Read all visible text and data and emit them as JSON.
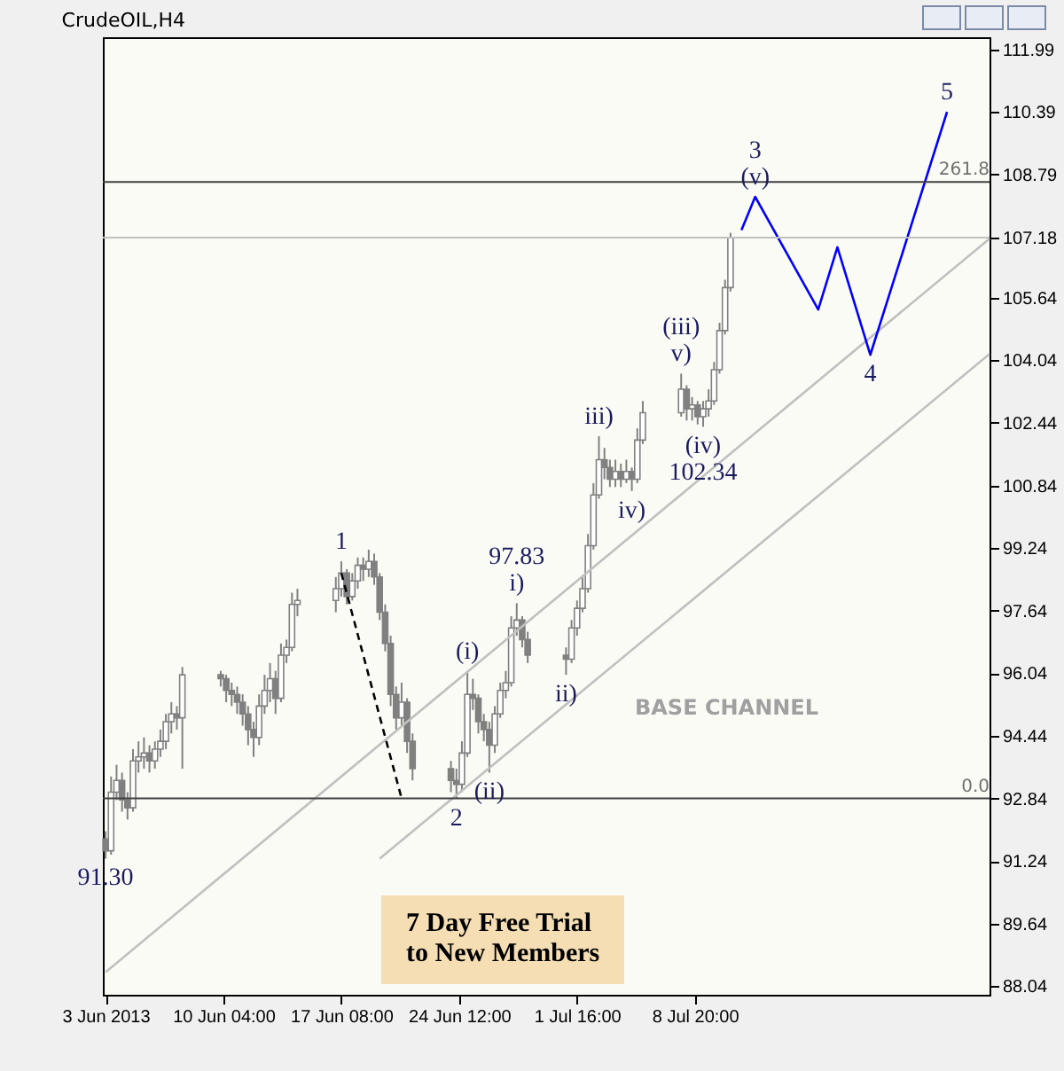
{
  "chart_data": {
    "type": "candlestick",
    "title": "CrudeOIL,H4",
    "xlim": [
      "2013-06-02T20:00",
      "2013-07-26T18:00"
    ],
    "xticks": [
      {
        "value": "2013-06-03T00:00",
        "label": "3 Jun 2013"
      },
      {
        "value": "2013-06-10T04:00",
        "label": "10 Jun 04:00"
      },
      {
        "value": "2013-06-17T08:00",
        "label": "17 Jun 08:00"
      },
      {
        "value": "2013-06-24T12:00",
        "label": "24 Jun 12:00"
      },
      {
        "value": "2013-07-01T16:00",
        "label": "1 Jul 16:00"
      },
      {
        "value": "2013-07-08T20:00",
        "label": "8 Jul 20:00"
      }
    ],
    "ylim": [
      87.82,
      112.3
    ],
    "yticks": [
      111.99,
      110.39,
      108.79,
      107.18,
      105.64,
      104.04,
      102.44,
      100.84,
      99.24,
      97.64,
      96.04,
      94.44,
      92.84,
      91.24,
      89.64,
      88.04
    ],
    "grid": false,
    "series": [
      {
        "color": "#808080",
        "x": [
          "2013-06-03T00:00",
          "2013-06-03T08:00",
          "2013-06-03T16:00",
          "2013-06-04T00:00",
          "2013-06-04T08:00",
          "2013-06-04T16:00",
          "2013-06-05T00:00",
          "2013-06-05T08:00",
          "2013-06-05T16:00",
          "2013-06-06T00:00",
          "2013-06-06T08:00",
          "2013-06-06T16:00",
          "2013-06-07T00:00",
          "2013-06-07T08:00",
          "2013-06-07T16:00",
          "2013-06-10T00:00",
          "2013-06-10T08:00",
          "2013-06-10T16:00",
          "2013-06-11T00:00",
          "2013-06-11T08:00",
          "2013-06-11T16:00",
          "2013-06-12T00:00",
          "2013-06-12T08:00",
          "2013-06-12T16:00",
          "2013-06-13T00:00",
          "2013-06-13T08:00",
          "2013-06-13T16:00",
          "2013-06-14T00:00",
          "2013-06-14T08:00",
          "2013-06-14T16:00",
          "2013-06-17T00:00",
          "2013-06-17T08:00",
          "2013-06-17T16:00",
          "2013-06-18T00:00",
          "2013-06-18T08:00",
          "2013-06-18T16:00",
          "2013-06-19T00:00",
          "2013-06-19T08:00",
          "2013-06-19T16:00",
          "2013-06-20T00:00",
          "2013-06-20T08:00",
          "2013-06-20T16:00",
          "2013-06-21T00:00",
          "2013-06-21T08:00",
          "2013-06-21T16:00",
          "2013-06-24T00:00",
          "2013-06-24T08:00",
          "2013-06-24T16:00",
          "2013-06-25T00:00",
          "2013-06-25T08:00",
          "2013-06-25T16:00",
          "2013-06-26T00:00",
          "2013-06-26T08:00",
          "2013-06-26T16:00",
          "2013-06-27T00:00",
          "2013-06-27T08:00",
          "2013-06-27T16:00",
          "2013-06-28T00:00",
          "2013-06-28T08:00",
          "2013-06-28T16:00",
          "2013-07-01T00:00",
          "2013-07-01T08:00",
          "2013-07-01T16:00",
          "2013-07-02T00:00",
          "2013-07-02T08:00",
          "2013-07-02T16:00",
          "2013-07-03T00:00",
          "2013-07-03T08:00",
          "2013-07-03T16:00",
          "2013-07-04T00:00",
          "2013-07-04T08:00",
          "2013-07-04T16:00",
          "2013-07-05T00:00",
          "2013-07-05T08:00",
          "2013-07-05T16:00",
          "2013-07-08T00:00",
          "2013-07-08T08:00",
          "2013-07-08T16:00",
          "2013-07-09T00:00",
          "2013-07-09T08:00",
          "2013-07-09T16:00",
          "2013-07-10T00:00",
          "2013-07-10T08:00",
          "2013-07-10T16:00",
          "2013-07-11T00:00"
        ],
        "ohlc": [
          [
            91.8,
            92.0,
            91.3,
            91.5
          ],
          [
            91.5,
            93.4,
            91.4,
            93.0
          ],
          [
            93.0,
            93.7,
            92.8,
            93.3
          ],
          [
            93.3,
            93.5,
            92.5,
            92.8
          ],
          [
            92.8,
            93.0,
            92.3,
            92.6
          ],
          [
            92.6,
            94.1,
            92.5,
            93.8
          ],
          [
            93.8,
            94.3,
            93.5,
            93.9
          ],
          [
            93.9,
            94.4,
            93.6,
            94.0
          ],
          [
            94.0,
            94.2,
            93.5,
            93.8
          ],
          [
            93.8,
            94.3,
            93.6,
            94.1
          ],
          [
            94.1,
            94.6,
            93.9,
            94.3
          ],
          [
            94.3,
            95.0,
            94.1,
            94.8
          ],
          [
            94.8,
            95.3,
            94.5,
            95.0
          ],
          [
            95.0,
            95.2,
            94.6,
            94.9
          ],
          [
            94.9,
            96.2,
            93.6,
            96.0
          ],
          [
            96.0,
            96.1,
            95.7,
            95.9
          ],
          [
            95.9,
            96.0,
            95.3,
            95.6
          ],
          [
            95.6,
            95.8,
            95.2,
            95.5
          ],
          [
            95.5,
            95.7,
            95.0,
            95.3
          ],
          [
            95.3,
            95.5,
            94.7,
            95.0
          ],
          [
            95.0,
            95.2,
            94.2,
            94.6
          ],
          [
            94.6,
            94.8,
            93.9,
            94.4
          ],
          [
            94.4,
            95.5,
            94.2,
            95.2
          ],
          [
            95.2,
            96.0,
            95.0,
            95.6
          ],
          [
            95.6,
            96.3,
            95.3,
            95.9
          ],
          [
            95.9,
            96.1,
            95.0,
            95.4
          ],
          [
            95.4,
            96.8,
            95.3,
            96.5
          ],
          [
            96.5,
            96.9,
            96.3,
            96.7
          ],
          [
            96.7,
            98.1,
            96.6,
            97.8
          ],
          [
            97.8,
            98.2,
            97.5,
            97.9
          ],
          [
            97.9,
            98.5,
            97.6,
            98.2
          ],
          [
            98.2,
            98.9,
            98.0,
            98.6
          ],
          [
            98.6,
            98.7,
            97.8,
            98.0
          ],
          [
            98.0,
            98.6,
            97.9,
            98.4
          ],
          [
            98.4,
            99.0,
            98.2,
            98.8
          ],
          [
            98.8,
            99.0,
            98.4,
            98.7
          ],
          [
            98.7,
            99.2,
            98.5,
            98.9
          ],
          [
            98.9,
            99.1,
            98.3,
            98.5
          ],
          [
            98.5,
            98.6,
            97.4,
            97.6
          ],
          [
            97.6,
            97.8,
            96.6,
            96.8
          ],
          [
            96.8,
            97.0,
            95.2,
            95.5
          ],
          [
            95.5,
            95.7,
            94.6,
            94.9
          ],
          [
            94.9,
            95.8,
            94.7,
            95.3
          ],
          [
            95.3,
            95.4,
            94.0,
            94.3
          ],
          [
            94.3,
            94.5,
            93.3,
            93.6
          ],
          [
            93.6,
            93.8,
            93.0,
            93.3
          ],
          [
            93.3,
            93.6,
            92.84,
            93.2
          ],
          [
            93.2,
            94.3,
            93.0,
            94.0
          ],
          [
            94.0,
            96.1,
            93.9,
            95.5
          ],
          [
            95.5,
            95.9,
            95.1,
            95.4
          ],
          [
            95.4,
            95.5,
            94.5,
            94.8
          ],
          [
            94.8,
            95.0,
            94.3,
            94.6
          ],
          [
            94.6,
            94.8,
            93.5,
            94.2
          ],
          [
            94.2,
            95.2,
            94.0,
            95.0
          ],
          [
            95.0,
            95.8,
            94.9,
            95.6
          ],
          [
            95.6,
            96.1,
            95.4,
            95.8
          ],
          [
            95.8,
            97.5,
            95.7,
            97.2
          ],
          [
            97.2,
            97.83,
            97.0,
            97.4
          ],
          [
            97.4,
            97.5,
            96.7,
            96.9
          ],
          [
            96.9,
            97.1,
            96.3,
            96.5
          ],
          [
            96.5,
            96.7,
            96.0,
            96.4
          ],
          [
            96.4,
            97.4,
            96.3,
            97.2
          ],
          [
            97.2,
            97.9,
            97.0,
            97.7
          ],
          [
            97.7,
            98.5,
            97.6,
            98.2
          ],
          [
            98.2,
            99.6,
            98.1,
            99.3
          ],
          [
            99.3,
            100.9,
            99.2,
            100.6
          ],
          [
            100.6,
            102.1,
            100.5,
            101.5
          ],
          [
            101.5,
            101.8,
            101.0,
            101.3
          ],
          [
            101.3,
            101.5,
            100.8,
            101.0
          ],
          [
            101.0,
            101.5,
            100.8,
            101.2
          ],
          [
            101.2,
            101.4,
            100.8,
            101.0
          ],
          [
            101.0,
            101.5,
            100.9,
            101.2
          ],
          [
            101.2,
            101.3,
            100.7,
            101.0
          ],
          [
            101.0,
            102.3,
            100.9,
            102.0
          ],
          [
            102.0,
            103.0,
            101.9,
            102.7
          ],
          [
            102.7,
            103.7,
            102.6,
            103.3
          ],
          [
            103.3,
            103.4,
            102.5,
            102.8
          ],
          [
            102.8,
            103.1,
            102.5,
            102.9
          ],
          [
            102.9,
            103.0,
            102.4,
            102.6
          ],
          [
            102.6,
            103.0,
            102.34,
            102.8
          ],
          [
            102.8,
            103.3,
            102.6,
            103.0
          ],
          [
            103.0,
            104.0,
            102.9,
            103.8
          ],
          [
            103.8,
            105.0,
            103.7,
            104.8
          ],
          [
            104.8,
            106.1,
            104.7,
            105.9
          ],
          [
            105.9,
            107.3,
            105.8,
            107.18
          ]
        ]
      },
      {
        "type": "line",
        "color": "#c0c0c0",
        "x": [
          "2013-06-03T00:00",
          "2013-07-26T18:00"
        ],
        "values": [
          88.4,
          107.15
        ]
      },
      {
        "type": "line",
        "color": "#c0c0c0",
        "x": [
          "2013-06-19T16:00",
          "2013-07-26T18:00"
        ],
        "values": [
          91.3,
          104.2
        ]
      },
      {
        "type": "line",
        "color": "#000000",
        "line_style": "dashed",
        "x": [
          "2013-06-17T08:00",
          "2013-06-21T00:00"
        ],
        "values": [
          98.6,
          92.84
        ]
      },
      {
        "type": "line",
        "color": "#0000ff",
        "x": [
          "2013-07-11T16:00",
          "2013-07-12T12:00",
          "2013-07-16T08:00",
          "2013-07-17T12:00",
          "2013-07-19T12:00",
          "2013-07-24T04:00"
        ],
        "values": [
          107.37,
          108.22,
          105.34,
          106.93,
          104.18,
          110.39
        ]
      }
    ],
    "ref_lines": [
      {
        "axis": "y",
        "value": 108.6,
        "color": "#404040"
      },
      {
        "axis": "y",
        "value": 92.84,
        "color": "#404040"
      },
      {
        "axis": "y",
        "value": 107.18,
        "color": "#c0c0c0"
      }
    ],
    "annotations": [
      {
        "text": "91.30",
        "x": "2013-06-03T00:00",
        "y": 91.3
      },
      {
        "text": "1",
        "x": "2013-06-17T08:00",
        "y": 98.9
      },
      {
        "text": "2",
        "x": "2013-06-24T08:00",
        "y": 92.84
      },
      {
        "text": "(i)",
        "x": "2013-06-25T00:00",
        "y": 96.1
      },
      {
        "text": "(ii)",
        "x": "2013-06-26T08:00",
        "y": 93.5
      },
      {
        "text": "i)",
        "x": "2013-06-28T00:00",
        "y": 97.83
      },
      {
        "text": "97.83",
        "x": "2013-06-28T00:00",
        "y": 97.83
      },
      {
        "text": "ii)",
        "x": "2013-07-01T00:00",
        "y": 96.0
      },
      {
        "text": "iii)",
        "x": "2013-07-03T00:00",
        "y": 102.1
      },
      {
        "text": "iv)",
        "x": "2013-07-05T00:00",
        "y": 100.7
      },
      {
        "text": "v)",
        "x": "2013-07-08T00:00",
        "y": 103.7
      },
      {
        "text": "(iii)",
        "x": "2013-07-08T00:00",
        "y": 103.7
      },
      {
        "text": "(iv)",
        "x": "2013-07-09T08:00",
        "y": 102.34
      },
      {
        "text": "102.34",
        "x": "2013-07-09T08:00",
        "y": 102.34
      },
      {
        "text": "(v)",
        "x": "2013-07-12T12:00",
        "y": 108.22
      },
      {
        "text": "3",
        "x": "2013-07-12T12:00",
        "y": 108.22
      },
      {
        "text": "4",
        "x": "2013-07-19T12:00",
        "y": 104.18
      },
      {
        "text": "5",
        "x": "2013-07-24T04:00",
        "y": 110.39
      },
      {
        "text": "261.8",
        "x": "2013-07-26T18:00",
        "y": 108.6
      },
      {
        "text": "0.0",
        "x": "2013-07-26T18:00",
        "y": 92.84
      },
      "BASE CHANNEL",
      "7 Day Free Trial\nto New Members"
    ]
  }
}
